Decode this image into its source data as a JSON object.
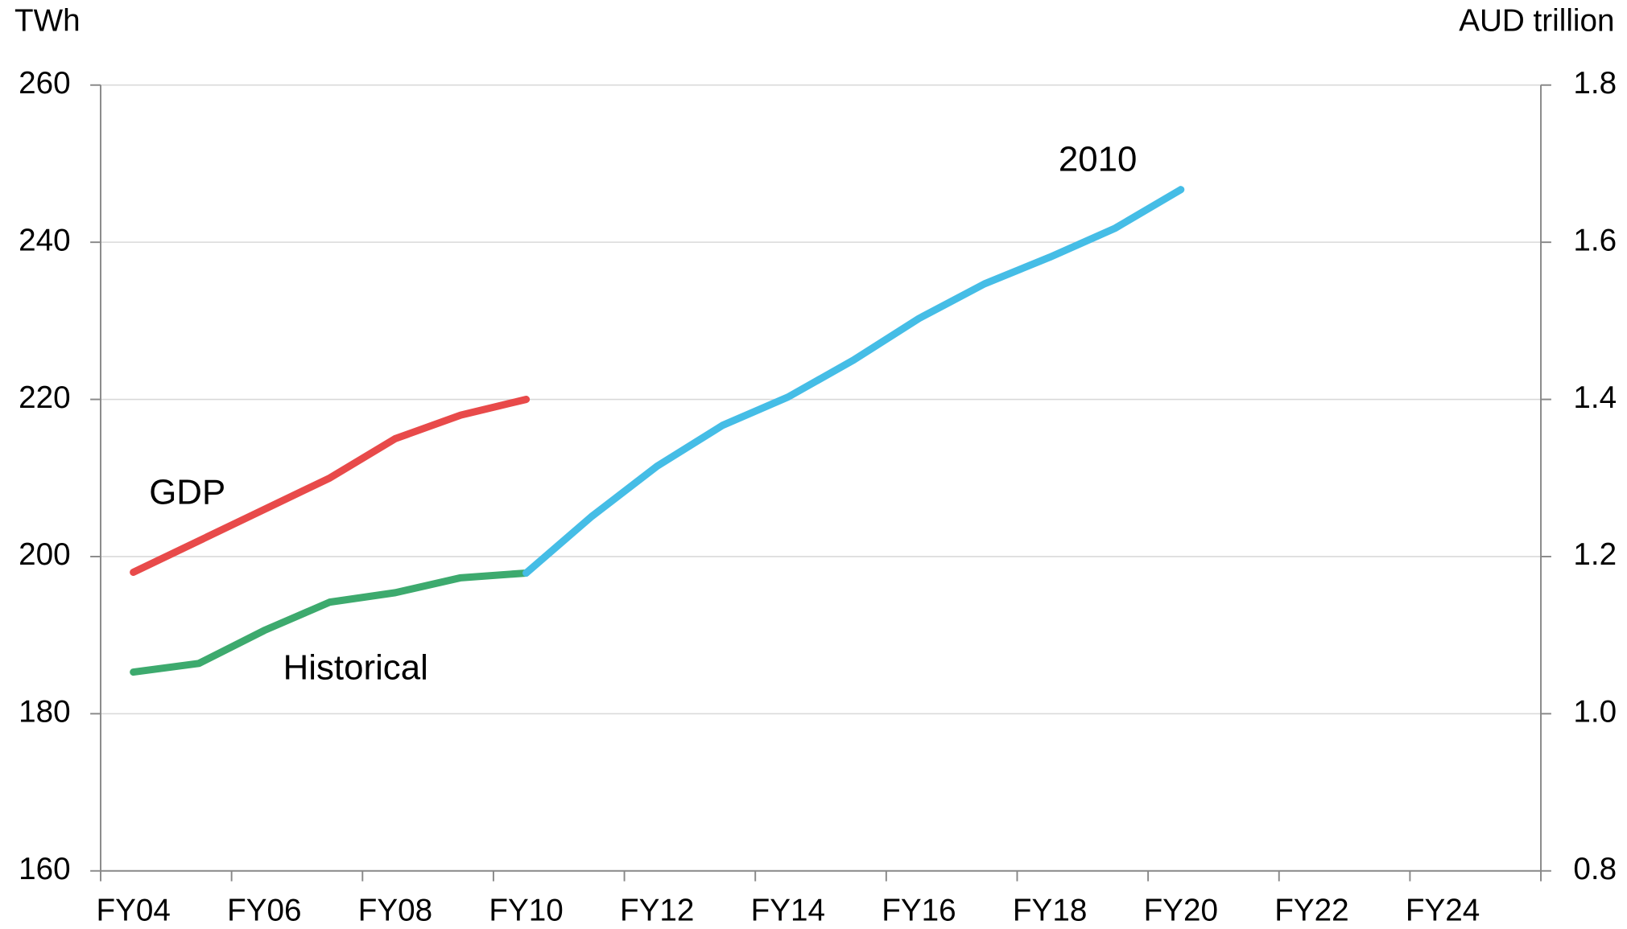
{
  "chart_data": {
    "type": "line",
    "y_label": "TWh",
    "y2_label": "AUD trillion",
    "categories": [
      "FY04",
      null,
      "FY06",
      null,
      "FY08",
      null,
      "FY10",
      null,
      "FY12",
      null,
      "FY14",
      null,
      "FY16",
      null,
      "FY18",
      null,
      "FY20",
      null,
      "FY22",
      null,
      "FY24",
      null
    ],
    "ylim": [
      160,
      260
    ],
    "yticks": [
      160,
      180,
      200,
      220,
      240,
      260
    ],
    "y2lim": [
      0.8,
      1.8
    ],
    "y2ticks": [
      0.8,
      {
        "value": 1,
        "label": "1.0"
      },
      1.2,
      1.4,
      1.6,
      1.8
    ],
    "grid": true,
    "series": [
      {
        "name": "Historical",
        "color": "#3daa6e",
        "values": [
          185.3,
          186.4,
          190.6,
          194.2,
          195.4,
          197.3,
          197.9,
          null,
          null,
          null,
          null,
          null,
          null,
          null,
          null,
          null,
          null,
          null,
          null,
          null,
          null,
          null
        ]
      },
      {
        "name": "2010",
        "color": "#45bde6",
        "values": [
          null,
          null,
          null,
          null,
          null,
          null,
          197.9,
          205.1,
          211.5,
          216.7,
          220.3,
          225.0,
          230.3,
          234.7,
          238.1,
          241.8,
          246.7,
          null,
          null,
          null,
          null,
          null
        ]
      },
      {
        "name": "GDP",
        "color": "#e84a4a",
        "axis": "y2",
        "values": [
          1.18,
          1.22,
          1.26,
          1.3,
          1.35,
          1.38,
          1.4,
          null,
          null,
          null,
          null,
          null,
          null,
          null,
          null,
          null,
          null,
          null,
          null,
          null,
          null,
          null
        ]
      }
    ]
  }
}
